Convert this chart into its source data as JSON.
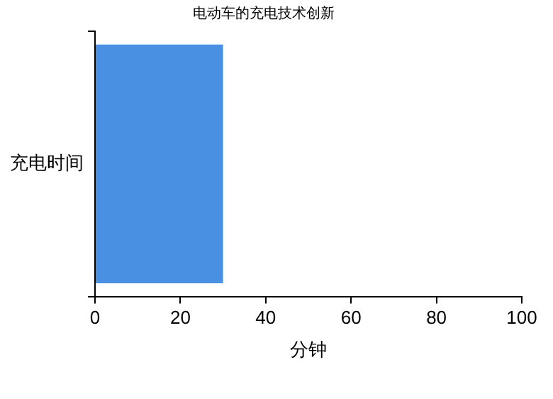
{
  "chart_data": {
    "type": "bar",
    "orientation": "horizontal",
    "title": "电动车的充电技术创新",
    "xlabel": "分钟",
    "categories": [
      "充电时间"
    ],
    "values": [
      30
    ],
    "color": "#4a90e2",
    "xlim": [
      0,
      100
    ],
    "xticks": [
      0,
      20,
      40,
      60,
      80,
      100
    ],
    "grid": false,
    "legend": false
  }
}
